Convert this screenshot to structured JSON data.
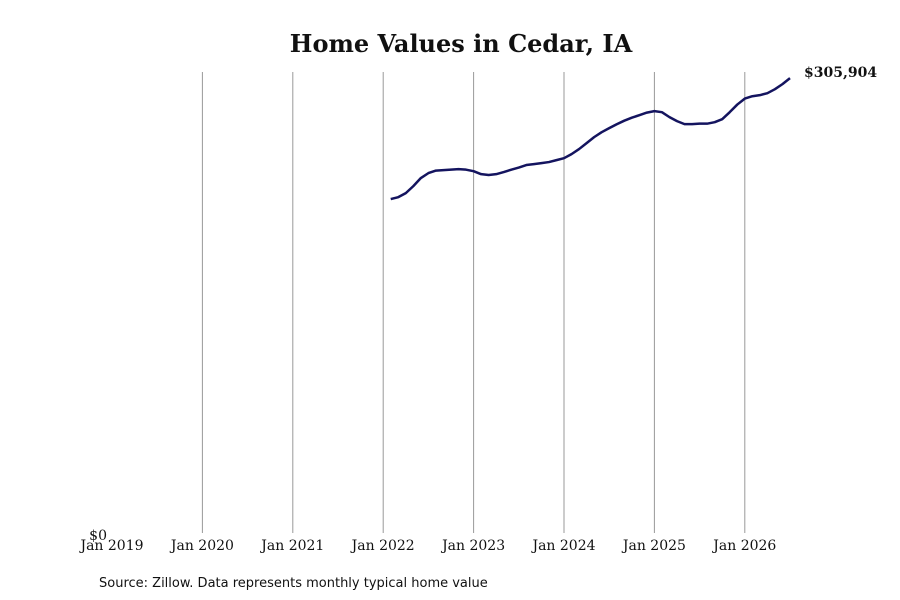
{
  "chart_data": {
    "type": "line",
    "title": "Home Values in Cedar, IA",
    "source": "Source: Zillow. Data represents monthly typical home value",
    "x": [
      "2022-02",
      "2022-03",
      "2022-04",
      "2022-05",
      "2022-06",
      "2022-07",
      "2022-08",
      "2022-09",
      "2022-10",
      "2022-11",
      "2022-12",
      "2023-01",
      "2023-02",
      "2023-03",
      "2023-04",
      "2023-05",
      "2023-06",
      "2023-07",
      "2023-08",
      "2023-09",
      "2023-10",
      "2023-11",
      "2023-12",
      "2024-01",
      "2024-02",
      "2024-03",
      "2024-04",
      "2024-05",
      "2024-06",
      "2024-07",
      "2024-08",
      "2024-09",
      "2024-10",
      "2024-11",
      "2024-12",
      "2025-01",
      "2025-02",
      "2025-03",
      "2025-04",
      "2025-05",
      "2025-06",
      "2025-07",
      "2025-08",
      "2025-09",
      "2025-10",
      "2025-11",
      "2025-12",
      "2026-01",
      "2026-02",
      "2026-03",
      "2026-04",
      "2026-05",
      "2026-06",
      "2026-07"
    ],
    "series": [
      {
        "color": "#14145f",
        "values": [
          224900,
          226200,
          228900,
          233600,
          239000,
          242300,
          244000,
          244300,
          244600,
          245000,
          244600,
          243600,
          241600,
          241000,
          241600,
          243000,
          244600,
          246000,
          247700,
          248300,
          249000,
          249700,
          251000,
          252300,
          255000,
          258400,
          262400,
          266400,
          269700,
          272400,
          275000,
          277400,
          279400,
          281100,
          282800,
          283800,
          283100,
          279800,
          277100,
          275100,
          275100,
          275400,
          275400,
          276400,
          278400,
          283100,
          288200,
          292200,
          293800,
          294500,
          295800,
          298500,
          301900,
          305904
        ],
        "value_labels": [
          null,
          null,
          null,
          null,
          null,
          null,
          null,
          null,
          null,
          null,
          null,
          null,
          null,
          null,
          null,
          null,
          null,
          null,
          null,
          null,
          null,
          null,
          null,
          null,
          null,
          null,
          null,
          null,
          null,
          null,
          null,
          null,
          null,
          null,
          null,
          null,
          null,
          null,
          null,
          null,
          null,
          null,
          null,
          null,
          null,
          null,
          null,
          null,
          null,
          null,
          null,
          null,
          null,
          "$305,904"
        ]
      }
    ],
    "xlim": [
      "2019-01",
      "2026-07"
    ],
    "xticks": [
      {
        "value": "2019-01",
        "label": "Jan 2019"
      },
      {
        "value": "2020-01",
        "label": "Jan 2020"
      },
      {
        "value": "2021-01",
        "label": "Jan 2021"
      },
      {
        "value": "2022-01",
        "label": "Jan 2022"
      },
      {
        "value": "2023-01",
        "label": "Jan 2023"
      },
      {
        "value": "2024-01",
        "label": "Jan 2024"
      },
      {
        "value": "2025-01",
        "label": "Jan 2025"
      },
      {
        "value": "2026-01",
        "label": "Jan 2026"
      }
    ],
    "ylim": [
      0,
      310000
    ],
    "yticks": [
      {
        "value": 0,
        "label": "$0"
      }
    ],
    "grid": true
  }
}
